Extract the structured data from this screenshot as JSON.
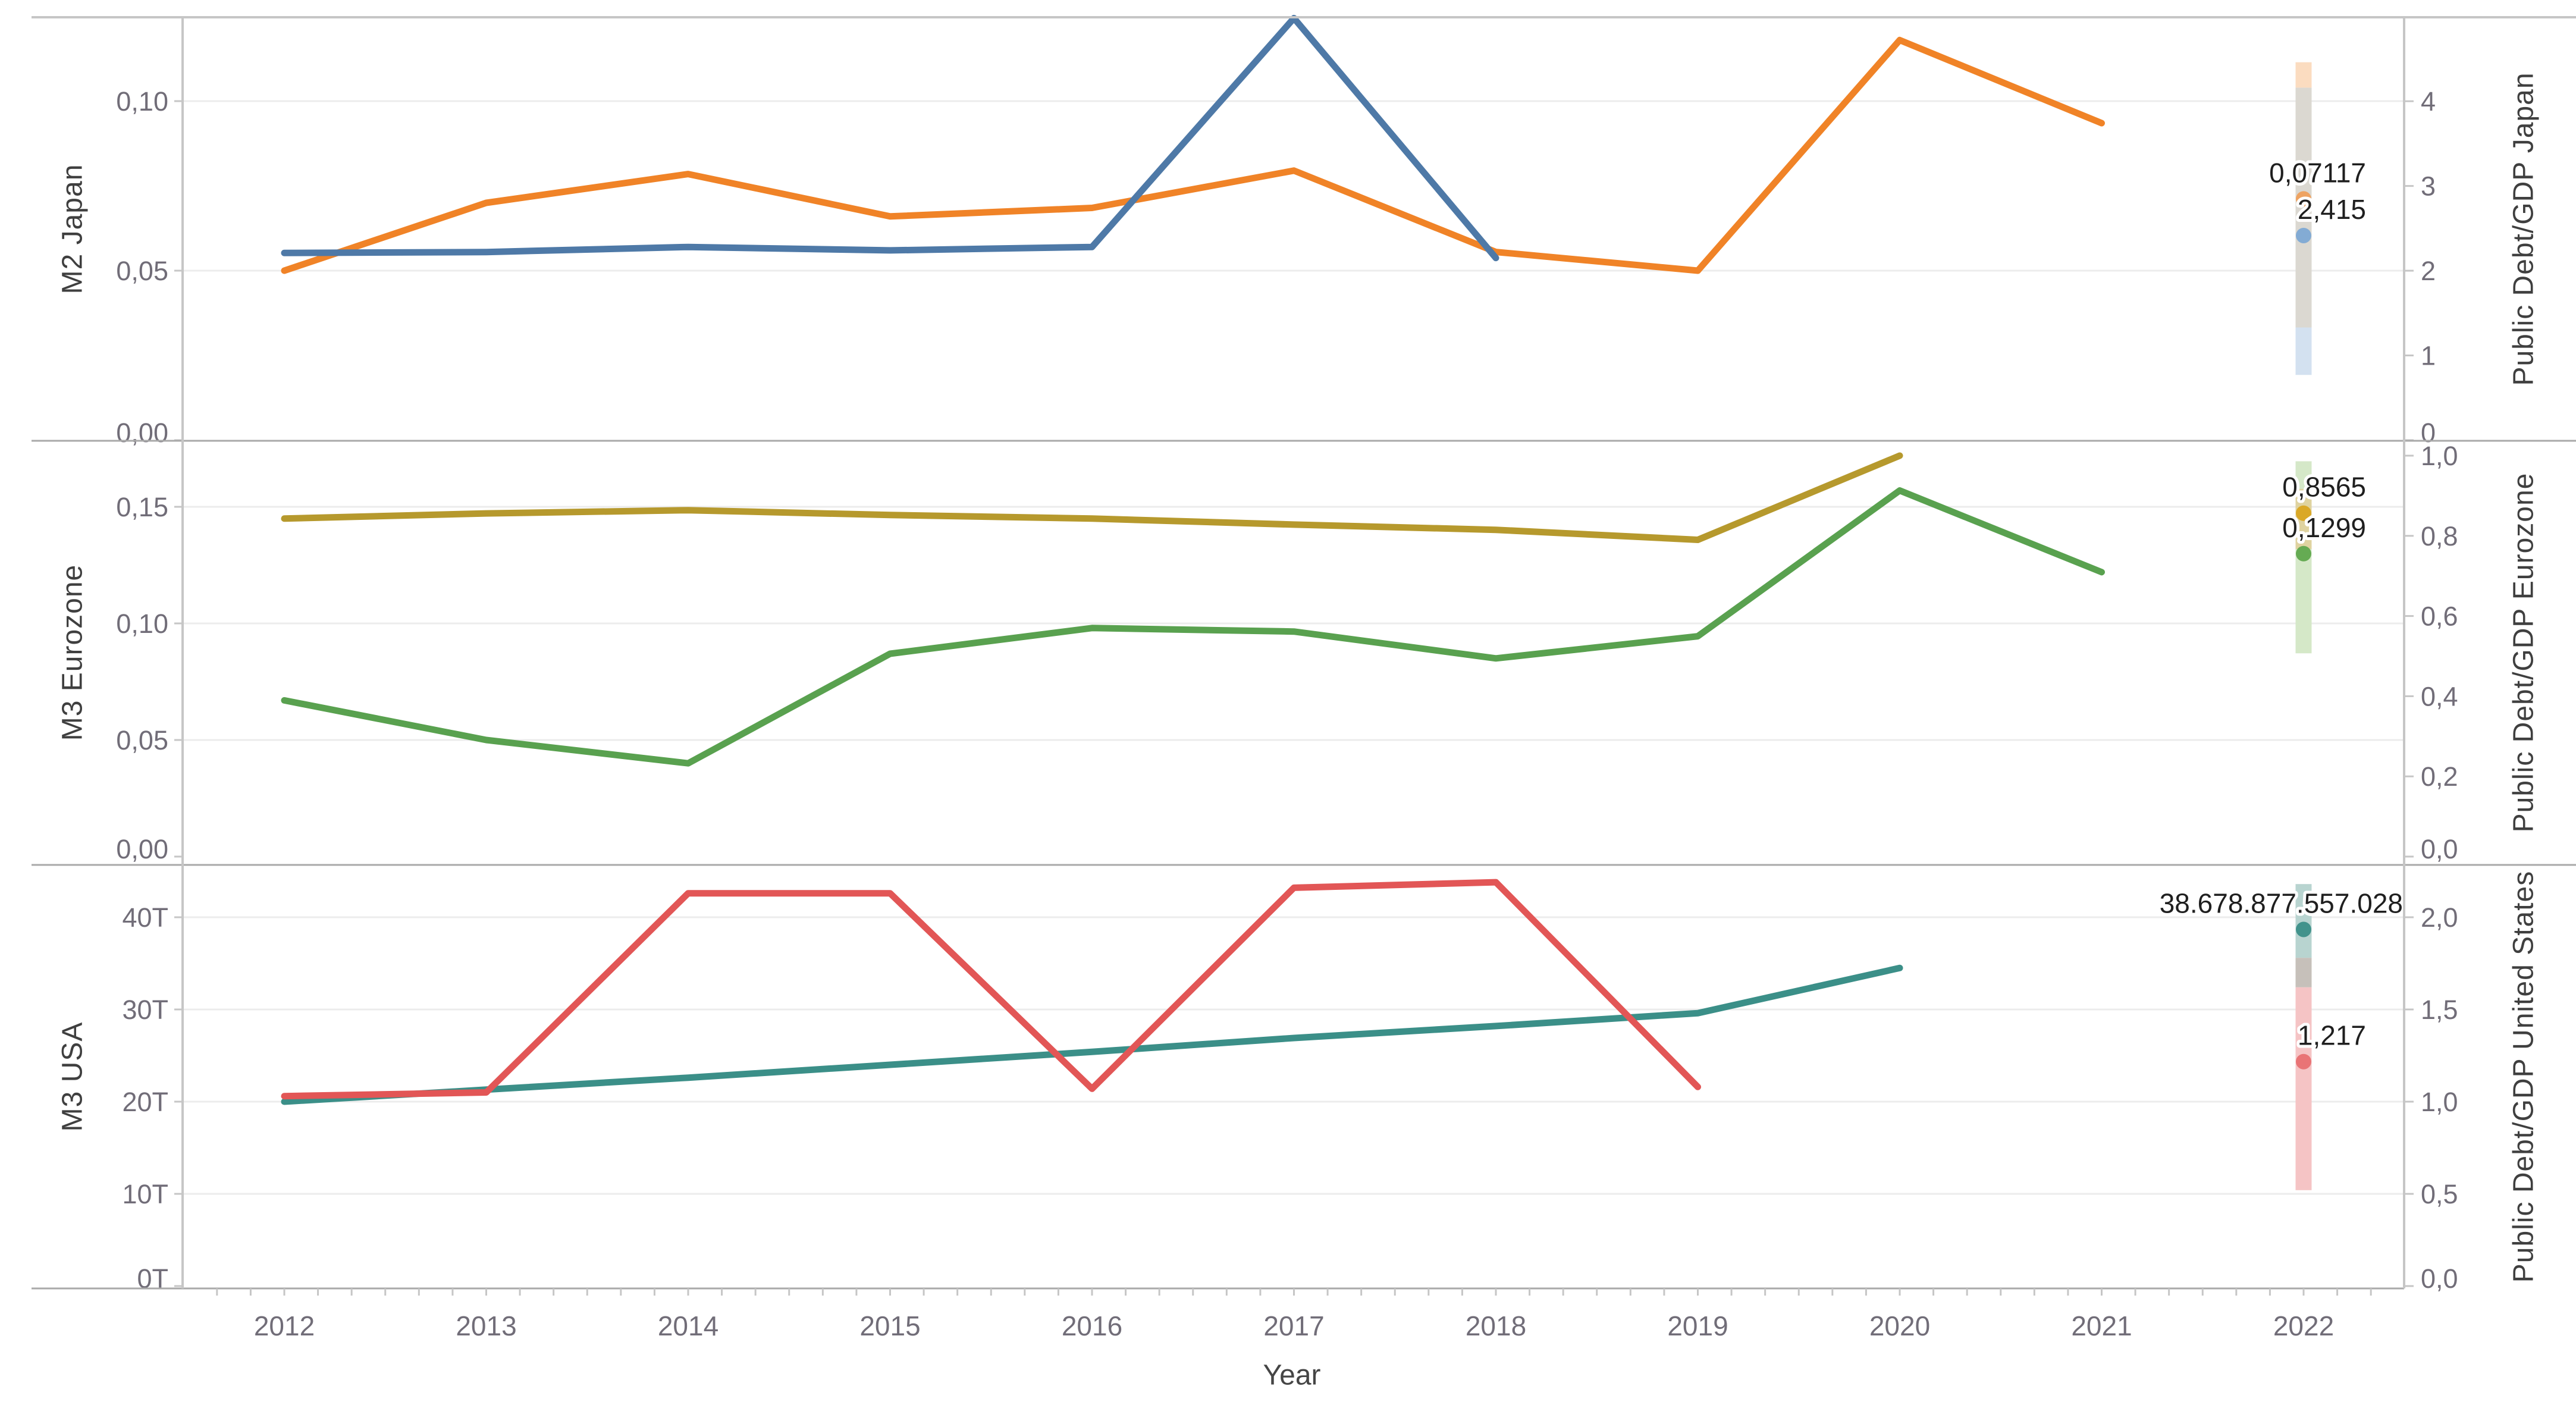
{
  "chart_data": {
    "type": "line",
    "title": "",
    "x_axis": {
      "title": "Year",
      "categories": [
        "2012",
        "2013",
        "2014",
        "2015",
        "2016",
        "2017",
        "2018",
        "2019",
        "2020",
        "2021",
        "2022"
      ]
    },
    "grid": "horizontal-only",
    "panels": [
      {
        "id": "japan",
        "left_axis": {
          "title": "M2 Japan",
          "tick_labels": [
            "0,10",
            "0,05",
            "0,00"
          ],
          "tick_values": [
            0.1,
            0.05,
            0
          ],
          "range": [
            0,
            0.126
          ]
        },
        "right_axis": {
          "title": "Public Debt/GDP Japan",
          "tick_labels": [
            "4",
            "3",
            "2",
            "1",
            "0"
          ],
          "tick_values": [
            4,
            3,
            2,
            1,
            0
          ],
          "range": [
            0,
            5.04
          ]
        },
        "series": [
          {
            "name": "M2 Japan",
            "axis": "left",
            "color": "#F08327",
            "start_year": "2012",
            "values": [
              0.05,
              0.07,
              0.0785,
              0.066,
              0.0685,
              0.0795,
              0.0555,
              0.05,
              0.118,
              0.0935
            ]
          },
          {
            "name": "Public Debt/GDP Japan",
            "axis": "right",
            "color": "#4E79A7",
            "start_year": "2012",
            "values": [
              2.21,
              2.22,
              2.28,
              2.24,
              2.28,
              4.98,
              2.15
            ]
          }
        ],
        "year2022_marks": {
          "bands": [
            {
              "axis": "right",
              "from": 4.46,
              "to": 4.16,
              "color": "#FBDCC0"
            },
            {
              "axis": "right",
              "from": 4.16,
              "to": 1.33,
              "color": "#DBD8D1"
            },
            {
              "axis": "right",
              "from": 1.33,
              "to": 0.77,
              "color": "#D3E1F0"
            }
          ],
          "points": [
            {
              "label": "0,07117",
              "axis": "left",
              "value": 0.07117,
              "color": "#EFA05C"
            },
            {
              "label": "2,415",
              "axis": "right",
              "value": 2.415,
              "color": "#7EA9D4"
            }
          ]
        }
      },
      {
        "id": "eurozone",
        "left_axis": {
          "title": "M3 Eurozone",
          "tick_labels": [
            "0,15",
            "0,10",
            "0,05",
            "0,00"
          ],
          "tick_values": [
            0.15,
            0.1,
            0.05,
            0
          ],
          "range": [
            0,
            0.1783
          ]
        },
        "right_axis": {
          "title": "Public Debt/GDP Eurozone",
          "tick_labels": [
            "1,0",
            "0,8",
            "0,6",
            "0,4",
            "0,2",
            "0,0"
          ],
          "tick_values": [
            1.0,
            0.8,
            0.6,
            0.4,
            0.2,
            0
          ],
          "range": [
            0,
            1.037
          ]
        },
        "series": [
          {
            "name": "Public Debt/GDP Eurozone",
            "axis": "right",
            "color": "#B6992D",
            "start_year": "2012",
            "values": [
              0.843,
              0.856,
              0.864,
              0.852,
              0.843,
              0.828,
              0.815,
              0.79,
              1.0
            ]
          },
          {
            "name": "M3 Eurozone",
            "axis": "left",
            "color": "#59A14F",
            "start_year": "2012",
            "values": [
              0.067,
              0.05,
              0.04,
              0.087,
              0.098,
              0.0965,
              0.085,
              0.0945,
              0.157,
              0.122
            ]
          }
        ],
        "year2022_marks": {
          "bands": [
            {
              "axis": "right",
              "from": 0.986,
              "to": 0.507,
              "color": "#D5E8C8"
            },
            {
              "axis": "right",
              "from": 0.917,
              "to": 0.767,
              "color": "#DFD3A0"
            }
          ],
          "points": [
            {
              "label": "0,8565",
              "axis": "right",
              "value": 0.8565,
              "color": "#D9A521"
            },
            {
              "label": "0,1299",
              "axis": "left",
              "value": 0.1299,
              "color": "#5FA84D"
            }
          ]
        }
      },
      {
        "id": "usa",
        "left_axis": {
          "title": "M3 USA",
          "tick_labels": [
            "40T",
            "30T",
            "20T",
            "10T",
            "0T"
          ],
          "tick_values": [
            40,
            30,
            20,
            10,
            0
          ],
          "unit": "trillions",
          "range": [
            0,
            45.7
          ]
        },
        "right_axis": {
          "title": "Public Debt/GDP United States",
          "tick_labels": [
            "2,0",
            "1,5",
            "1,0",
            "0,5",
            "0,0"
          ],
          "tick_values": [
            2.0,
            1.5,
            1.0,
            0.5,
            0
          ],
          "range": [
            0,
            2.296
          ]
        },
        "series": [
          {
            "name": "M3 USA",
            "axis": "left",
            "color": "#3B8F88",
            "start_year": "2012",
            "values": [
              20.0,
              21.3,
              22.6,
              24.0,
              25.4,
              26.9,
              28.2,
              29.6,
              34.5
            ]
          },
          {
            "name": "Public Debt/GDP United States",
            "axis": "right",
            "color": "#E25656",
            "start_year": "2012",
            "values": [
              1.03,
              1.05,
              2.13,
              2.13,
              1.07,
              2.16,
              2.19,
              1.08
            ]
          }
        ],
        "year2022_marks": {
          "bands": [
            {
              "axis": "right",
              "from": 2.18,
              "to": 1.78,
              "color": "#B8D4D0"
            },
            {
              "axis": "right",
              "from": 1.78,
              "to": 1.62,
              "color": "#C6C0BA"
            },
            {
              "axis": "right",
              "from": 1.62,
              "to": 0.52,
              "color": "#F5C4C5"
            }
          ],
          "points": [
            {
              "label": "38.678.877.557.028",
              "axis": "left",
              "value": 38.678877557028,
              "color": "#3B8F88"
            },
            {
              "label": "1,217",
              "axis": "right",
              "value": 1.217,
              "color": "#E87072"
            }
          ]
        }
      }
    ]
  }
}
